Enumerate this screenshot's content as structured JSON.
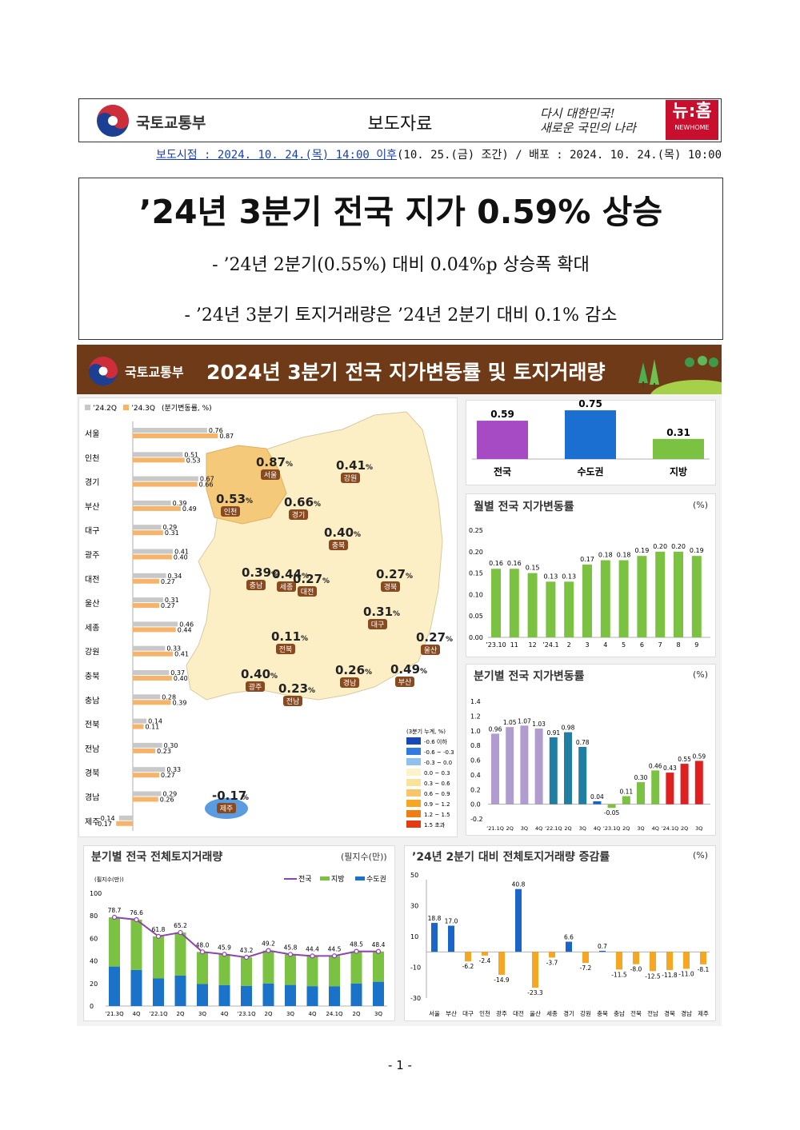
{
  "header": {
    "ministry": "국토교통부",
    "press_type": "보도자료",
    "slogan_line1": "다시 대한민국!",
    "slogan_line2": "새로운 국민의 나라",
    "brand_main": "뉴:홈",
    "brand_sub": "NEWHOME",
    "embargo_label": "보도시점 : 2024. 10. 24.(목) 14:00 이후",
    "embargo_rest": "(10. 25.(금) 조간) / 배포 : 2024. 10. 24.(목) 10:00"
  },
  "headline": {
    "title": "’24년 3분기 전국 지가 0.59% 상승",
    "sub1": "- ’24년 2분기(0.55%) 대비 0.04%p 상승폭 확대",
    "sub2": "- ’24년 3분기 토지거래량은 ’24년 2분기 대비 0.1% 감소"
  },
  "infographic": {
    "ministry": "국토교통부",
    "title": "2024년 3분기 전국 지가변동률 및 토지거래량",
    "colors": {
      "banner": "#6e3a17",
      "q2": "#c8c8c8",
      "q3": "#f6b46a",
      "green": "#7cc242",
      "purple": "#b19cd0",
      "teal": "#1f7ea1",
      "red": "#e02020",
      "blue": "#1a66c8",
      "orange": "#f5a623"
    }
  },
  "chart_data": [
    {
      "type": "bar",
      "id": "regional",
      "legend": [
        "’24.2Q",
        "’24.3Q",
        "(분기변동률, %)"
      ],
      "categories": [
        "서울",
        "인천",
        "경기",
        "부산",
        "대구",
        "광주",
        "대전",
        "울산",
        "세종",
        "강원",
        "충북",
        "충남",
        "전북",
        "전남",
        "경북",
        "경남",
        "제주"
      ],
      "series": [
        {
          "name": "’24.2Q",
          "values": [
            0.76,
            0.51,
            0.67,
            0.39,
            0.29,
            0.41,
            0.34,
            0.31,
            0.46,
            0.33,
            0.37,
            0.28,
            0.14,
            0.3,
            0.33,
            0.29,
            -0.14
          ]
        },
        {
          "name": "’24.3Q",
          "values": [
            0.87,
            0.53,
            0.66,
            0.49,
            0.31,
            0.4,
            0.27,
            0.27,
            0.44,
            0.41,
            0.4,
            0.39,
            0.11,
            0.23,
            0.27,
            0.26,
            -0.17
          ]
        }
      ]
    },
    {
      "type": "bar",
      "id": "zone",
      "categories": [
        "전국",
        "수도권",
        "지방"
      ],
      "values": [
        0.59,
        0.75,
        0.31
      ],
      "colors": [
        "#a64bc4",
        "#1a6fd0",
        "#7cc242"
      ]
    },
    {
      "type": "bar",
      "id": "monthly",
      "title": "월별 전국 지가변동률",
      "unit": "(%)",
      "categories": [
        "’23.10",
        "11",
        "12",
        "’24.1",
        "2",
        "3",
        "4",
        "5",
        "6",
        "7",
        "8",
        "9"
      ],
      "values": [
        0.16,
        0.16,
        0.15,
        0.13,
        0.13,
        0.17,
        0.18,
        0.18,
        0.19,
        0.2,
        0.2,
        0.19
      ],
      "yticks": [
        "0.25",
        "0.20",
        "0.15",
        "0.10",
        "0.05",
        "0.00"
      ],
      "ylim": [
        0,
        0.25
      ]
    },
    {
      "type": "bar",
      "id": "quarterly",
      "title": "분기별 전국 지가변동률",
      "unit": "(%)",
      "categories": [
        "’21.1Q",
        "2Q",
        "3Q",
        "4Q",
        "’22.1Q",
        "2Q",
        "3Q",
        "4Q",
        "’23.1Q",
        "2Q",
        "3Q",
        "4Q",
        "’24.1Q",
        "2Q",
        "3Q"
      ],
      "values": [
        0.96,
        1.05,
        1.07,
        1.03,
        0.91,
        0.98,
        0.78,
        0.04,
        -0.05,
        0.11,
        0.3,
        0.46,
        0.43,
        0.55,
        0.59
      ],
      "yticks": [
        "1.4",
        "1.2",
        "1.0",
        "0.8",
        "0.6",
        "0.4",
        "0.2",
        "0.0",
        "-0.2"
      ],
      "ylim": [
        -0.2,
        1.4
      ]
    },
    {
      "type": "bar",
      "id": "transactions",
      "title": "분기별 전국 전체토지거래량",
      "unit": "(필지수(만))",
      "yunit": "(필지수(만))",
      "legend": [
        "전국",
        "지방",
        "수도권"
      ],
      "categories": [
        "’21.3Q",
        "4Q",
        "’22.1Q",
        "2Q",
        "3Q",
        "4Q",
        "’23.1Q",
        "2Q",
        "3Q",
        "4Q",
        "24.1Q",
        "2Q",
        "3Q"
      ],
      "total": [
        78.7,
        76.6,
        61.8,
        65.2,
        48.0,
        45.9,
        43.2,
        49.2,
        45.8,
        44.4,
        44.5,
        48.5,
        48.4
      ],
      "capital": [
        35,
        32,
        24.5,
        27,
        19.5,
        18.5,
        17.8,
        20,
        18.7,
        17.6,
        17.5,
        20,
        21.5
      ],
      "yticks": [
        "100",
        "80",
        "60",
        "40",
        "20",
        "0"
      ],
      "ylim": [
        0,
        100
      ]
    },
    {
      "type": "bar",
      "id": "change",
      "title": "’24년 2분기 대비 전체토지거래량 증감률",
      "unit": "(%)",
      "categories": [
        "서울",
        "부산",
        "대구",
        "인천",
        "광주",
        "대전",
        "울산",
        "세종",
        "경기",
        "강원",
        "충북",
        "충남",
        "전북",
        "전남",
        "경북",
        "경남",
        "제주"
      ],
      "values": [
        18.8,
        17.0,
        -6.2,
        -2.4,
        -14.9,
        40.8,
        -23.3,
        -3.7,
        6.6,
        -7.2,
        0.7,
        -11.5,
        -8.0,
        -12.5,
        -11.8,
        -11.0,
        -8.1
      ],
      "yticks": [
        "50",
        "30",
        "10",
        "-10",
        "-30"
      ],
      "ylim": [
        -30,
        50
      ]
    }
  ],
  "map": {
    "regions": [
      {
        "name": "서울",
        "value": "0.87"
      },
      {
        "name": "인천",
        "value": "0.53"
      },
      {
        "name": "경기",
        "value": "0.66"
      },
      {
        "name": "강원",
        "value": "0.41"
      },
      {
        "name": "세종",
        "value": "0.44"
      },
      {
        "name": "충북",
        "value": "0.40"
      },
      {
        "name": "충남",
        "value": "0.39"
      },
      {
        "name": "대전",
        "value": "0.27"
      },
      {
        "name": "경북",
        "value": "0.27"
      },
      {
        "name": "대구",
        "value": "0.31"
      },
      {
        "name": "전북",
        "value": "0.11"
      },
      {
        "name": "울산",
        "value": "0.27"
      },
      {
        "name": "경남",
        "value": "0.26"
      },
      {
        "name": "부산",
        "value": "0.49"
      },
      {
        "name": "광주",
        "value": "0.40"
      },
      {
        "name": "전남",
        "value": "0.23"
      },
      {
        "name": "제주",
        "value": "-0.17"
      }
    ],
    "pct": "%",
    "legend_title": "(3분기 누계, %)",
    "legend_items": [
      "-0.6 이하",
      "-0.6 ~ -0.3",
      "-0.3 ~ 0.0",
      "0.0 ~ 0.3",
      "0.3 ~ 0.6",
      "0.6 ~ 0.9",
      "0.9 ~ 1.2",
      "1.2 ~ 1.5",
      "1.5 초과"
    ],
    "legend_colors": [
      "#1549b5",
      "#2f7be0",
      "#8fc1f0",
      "#fdf3c8",
      "#fbe29a",
      "#f8c56a",
      "#f5a623",
      "#ee7d14",
      "#e33b12"
    ]
  },
  "footer": {
    "page": "- 1 -"
  }
}
